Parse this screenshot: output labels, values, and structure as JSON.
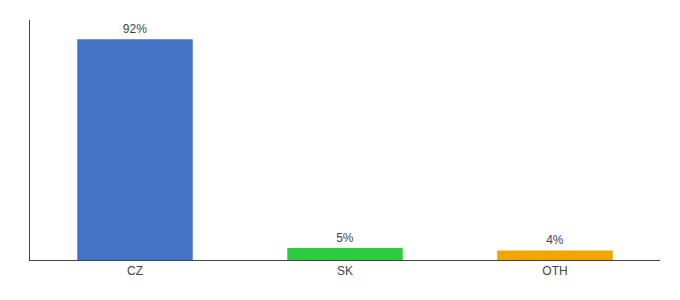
{
  "chart_data": {
    "type": "bar",
    "categories": [
      "CZ",
      "SK",
      "OTH"
    ],
    "values": [
      92,
      5,
      4
    ],
    "value_labels": [
      "92%",
      "5%",
      "4%"
    ],
    "colors": [
      "#4472c4",
      "#2ecc40",
      "#f0a500"
    ],
    "ylim": [
      0,
      100
    ],
    "data_labels": true,
    "grid": false,
    "tick_labels": "x"
  }
}
